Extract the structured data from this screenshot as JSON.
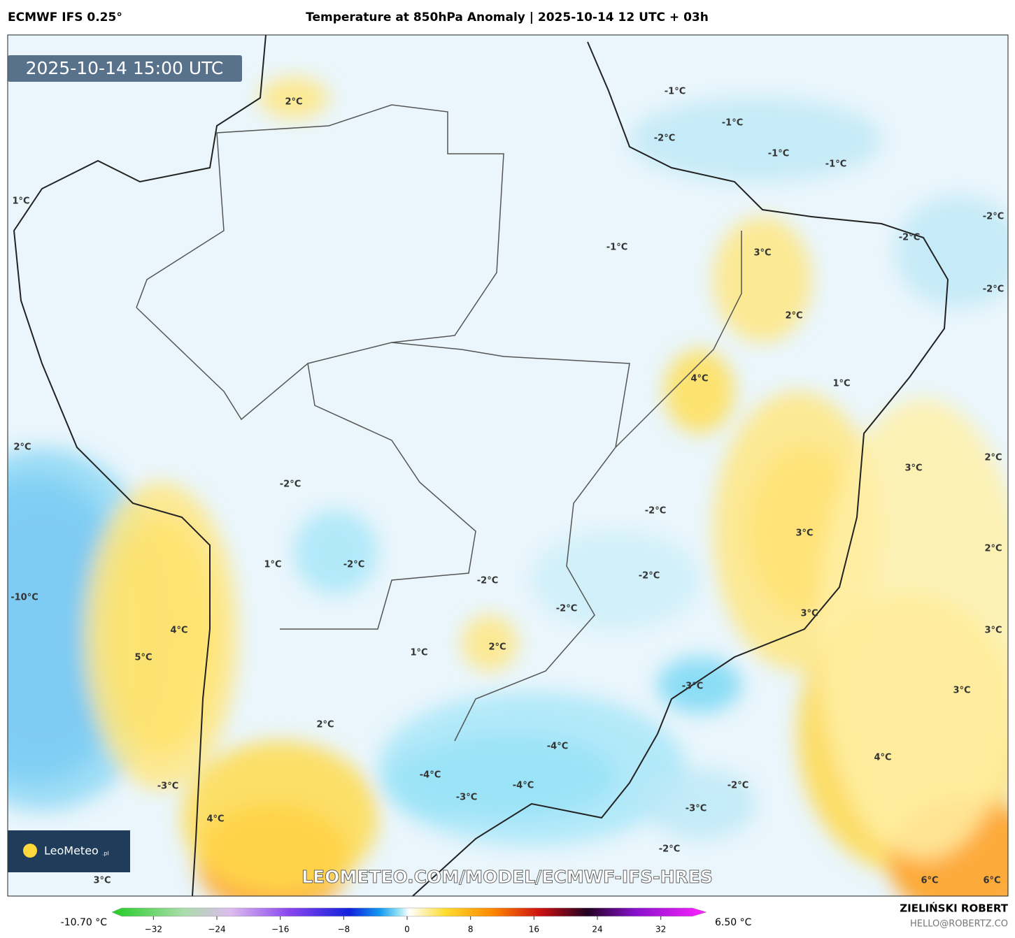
{
  "header": {
    "model": "ECMWF IFS 0.25°",
    "title": "Temperature at 850hPa Anomaly | 2025-10-14 12 UTC + 03h"
  },
  "timestamp": "2025-10-14 15:00 UTC",
  "contour_labels": [
    "2°C",
    "-1°C",
    "-2°C",
    "-1°C",
    "-1°C",
    "-1°C",
    "1°C",
    "-2°C",
    "-2°C",
    "-1°C",
    "3°C",
    "-2°C",
    "2°C",
    "4°C",
    "1°C",
    "2°C",
    "2°C",
    "3°C",
    "-2°C",
    "-2°C",
    "3°C",
    "2°C",
    "1°C",
    "-2°C",
    "-2°C",
    "-2°C",
    "-10°C",
    "-2°C",
    "3°C",
    "4°C",
    "3°C",
    "1°C",
    "5°C",
    "2°C",
    "-3°C",
    "3°C",
    "2°C",
    "-4°C",
    "4°C",
    "-4°C",
    "-3°C",
    "-4°C",
    "-2°C",
    "-3°C",
    "-3°C",
    "4°C",
    "-2°C",
    "3°C",
    "6°C",
    "6°C"
  ],
  "watermark": "LEOMETEO.COM/MODEL/ECMWF-IFS-HRES",
  "logo": {
    "name": "LeoMeteo",
    "suffix": ".pl"
  },
  "colorbar": {
    "lim": [
      -36,
      36
    ],
    "ticks": [
      {
        "value": -32,
        "label": "−32"
      },
      {
        "value": -24,
        "label": "−24"
      },
      {
        "value": -16,
        "label": "−16"
      },
      {
        "value": -8,
        "label": "−8"
      },
      0,
      8,
      16,
      24,
      32
    ],
    "min_label": "-10.70 °C",
    "max_label": "6.50 °C"
  },
  "credits": {
    "author": "ZIELIŃSKI ROBERT",
    "email": "HELLO@ROBERTZ.CO"
  }
}
